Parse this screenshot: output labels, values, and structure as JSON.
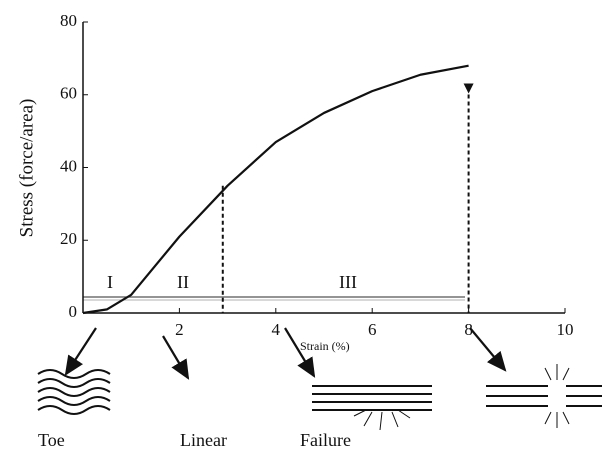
{
  "chart_data": {
    "type": "line",
    "ylabel": "Stress (force/area)",
    "xlabel": "Strain (%)",
    "x": [
      0,
      0.5,
      1,
      1.5,
      2,
      3,
      4,
      5,
      6,
      7,
      8
    ],
    "values": [
      0,
      1,
      5,
      13,
      21,
      35,
      47,
      55,
      61,
      65.5,
      68
    ],
    "color": "#111111",
    "xlim": [
      0,
      10
    ],
    "xticks": [
      2,
      4,
      6,
      8,
      10
    ],
    "ylim": [
      0,
      80
    ],
    "yticks": [
      0,
      20,
      40,
      60,
      80
    ],
    "dashed_lines": [
      {
        "x": 2.9,
        "y": 35
      },
      {
        "x": 8,
        "y": 62
      }
    ],
    "regions": [
      "I",
      "II",
      "III"
    ],
    "stages": [
      "Toe",
      "Linear",
      "Failure"
    ]
  }
}
